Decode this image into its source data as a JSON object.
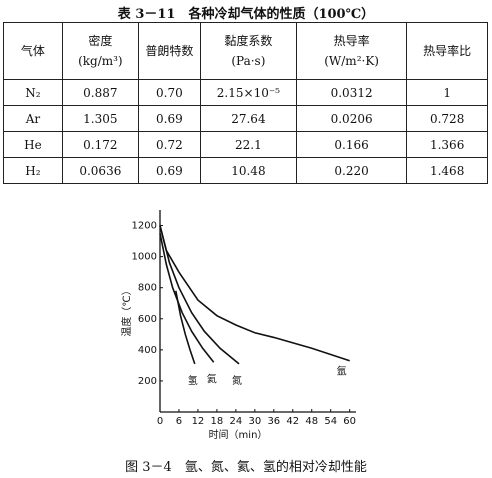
{
  "table": {
    "title": "表 3－11　各种冷却气体的性质（100℃）",
    "headers": [
      {
        "name": "气体"
      },
      {
        "name": "密度",
        "unit": "(kg/m³)"
      },
      {
        "name": "普朗特数"
      },
      {
        "name": "黏度系数",
        "unit": "(Pa·s)"
      },
      {
        "name": "热导率",
        "unit": "(W/m²·K)"
      },
      {
        "name": "热导率比"
      }
    ],
    "rows": [
      [
        "N₂",
        "0.887",
        "0.70",
        "2.15×10⁻⁵",
        "0.0312",
        "1"
      ],
      [
        "Ar",
        "1.305",
        "0.69",
        "27.64",
        "0.0206",
        "0.728"
      ],
      [
        "He",
        "0.172",
        "0.72",
        "22.1",
        "0.166",
        "1.366"
      ],
      [
        "H₂",
        "0.0636",
        "0.69",
        "10.48",
        "0.220",
        "1.468"
      ]
    ]
  },
  "chart_data": {
    "type": "line",
    "caption": "图 3－4　氩、氮、氦、氢的相对冷却性能",
    "x_label": "时间（min）",
    "y_label": "温度（℃）",
    "xlim": [
      0,
      62
    ],
    "ylim": [
      0,
      1300
    ],
    "xticks": [
      0,
      6,
      12,
      18,
      24,
      30,
      36,
      42,
      48,
      54,
      60
    ],
    "yticks": [
      200,
      400,
      600,
      800,
      1000,
      1200
    ],
    "color": "#111111",
    "series": [
      {
        "name": "氢",
        "x": [
          5,
          6.5,
          8,
          9.5,
          11
        ],
        "values": [
          780,
          620,
          500,
          400,
          310
        ]
      },
      {
        "name": "氦",
        "x": [
          0,
          2,
          4,
          7,
          10,
          13.5,
          17
        ],
        "values": [
          1150,
          950,
          800,
          640,
          520,
          410,
          320
        ]
      },
      {
        "name": "氮",
        "x": [
          0,
          3,
          6,
          10,
          14,
          19,
          25
        ],
        "values": [
          1200,
          960,
          800,
          640,
          520,
          410,
          310
        ]
      },
      {
        "name": "氩",
        "x": [
          0,
          2,
          6,
          12,
          18,
          24,
          30,
          36,
          48,
          60
        ],
        "values": [
          1200,
          1040,
          900,
          720,
          620,
          560,
          510,
          480,
          410,
          330
        ]
      }
    ]
  }
}
